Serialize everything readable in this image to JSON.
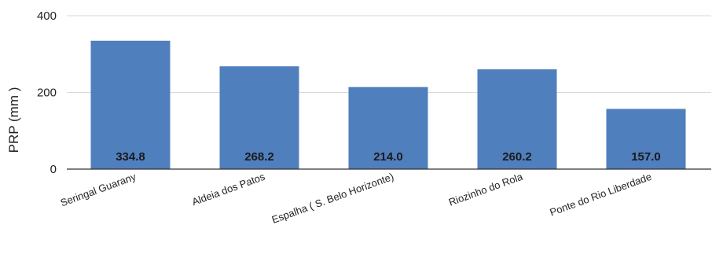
{
  "chart_data": {
    "type": "bar",
    "title": "",
    "xlabel": "",
    "ylabel": "PRP (mm )",
    "ylim": [
      0,
      400
    ],
    "yticks": [
      0,
      200,
      400
    ],
    "grid": true,
    "categories": [
      "Seringal Guarany",
      "Aldeia dos Patos",
      "Espalha ( S. Belo Horizonte)",
      "Riozinho do Rola",
      "Ponte do Rio Liberdade"
    ],
    "values": [
      334.8,
      268.2,
      214.0,
      260.2,
      157.0
    ],
    "data_labels": [
      "334.8",
      "268.2",
      "214.0",
      "260.2",
      "157.0"
    ],
    "bar_color": "#4f7fbd",
    "gridline_color": "#d9d9d9",
    "axis_color": "#333333"
  }
}
